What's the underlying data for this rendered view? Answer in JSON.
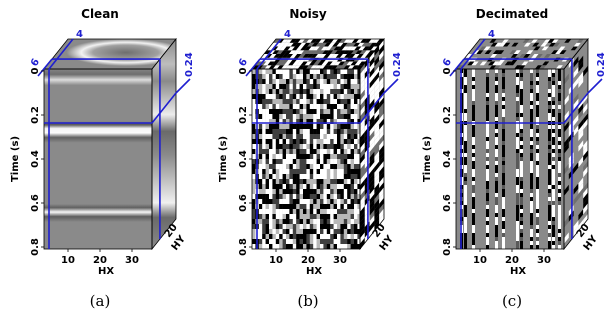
{
  "panels": [
    {
      "id": "a",
      "title": "Clean",
      "caption": "(a)",
      "style": "clean",
      "time_ticks": [
        "0",
        "0.2",
        "0.4",
        "0.6",
        "0.8"
      ],
      "hx_ticks": [
        "10",
        "20",
        "30"
      ],
      "hy_ticks": [
        "20"
      ],
      "slice_labels": {
        "top": "4",
        "left": "6",
        "right": "0.24"
      },
      "axis_labels": {
        "time": "Time (s)",
        "hx": "HX",
        "hy": "HY"
      }
    },
    {
      "id": "b",
      "title": "Noisy",
      "caption": "(b)",
      "style": "noisy",
      "time_ticks": [
        "0",
        "0.2",
        "0.4",
        "0.6",
        "0.8"
      ],
      "hx_ticks": [
        "10",
        "20",
        "30"
      ],
      "hy_ticks": [
        "20"
      ],
      "slice_labels": {
        "top": "4",
        "left": "6",
        "right": "0.24"
      },
      "axis_labels": {
        "time": "Time (s)",
        "hx": "HX",
        "hy": "HY"
      }
    },
    {
      "id": "c",
      "title": "Decimated",
      "caption": "(c)",
      "style": "decimated",
      "time_ticks": [
        "0",
        "0.2",
        "0.4",
        "0.6",
        "0.8"
      ],
      "hx_ticks": [
        "10",
        "20",
        "30"
      ],
      "hy_ticks": [
        "20"
      ],
      "slice_labels": {
        "top": "4",
        "left": "6",
        "right": "0.24"
      },
      "axis_labels": {
        "time": "Time (s)",
        "hx": "HX",
        "hy": "HY"
      }
    }
  ],
  "colors": {
    "slice_lines": "#1f1fd0",
    "background_gray": "#8a8a8a"
  }
}
